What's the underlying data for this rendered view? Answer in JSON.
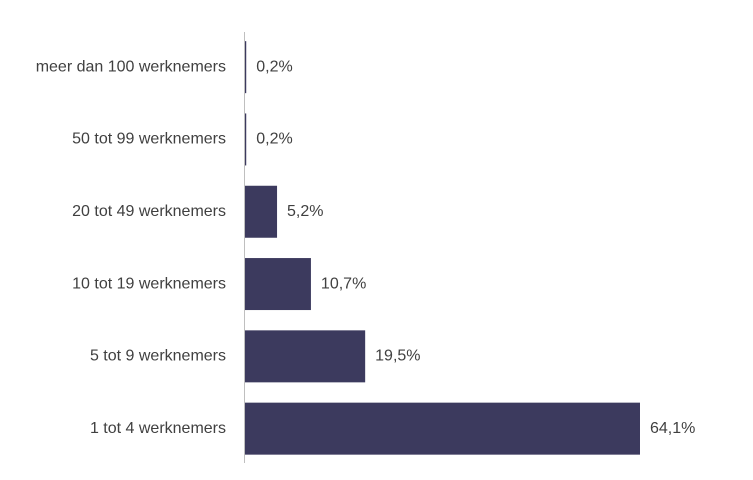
{
  "chart_data": {
    "type": "bar",
    "orientation": "horizontal",
    "categories": [
      "meer dan 100 werknemers",
      "50 tot 99 werknemers",
      "20 tot 49 werknemers",
      "10 tot 19 werknemers",
      "5 tot 9 werknemers",
      "1 tot 4 werknemers"
    ],
    "values": [
      0.2,
      0.2,
      5.2,
      10.7,
      19.5,
      64.1
    ],
    "value_labels": [
      "0,2%",
      "0,2%",
      "5,2%",
      "10,7%",
      "19,5%",
      "64,1%"
    ],
    "color": "#3c3a5e"
  }
}
